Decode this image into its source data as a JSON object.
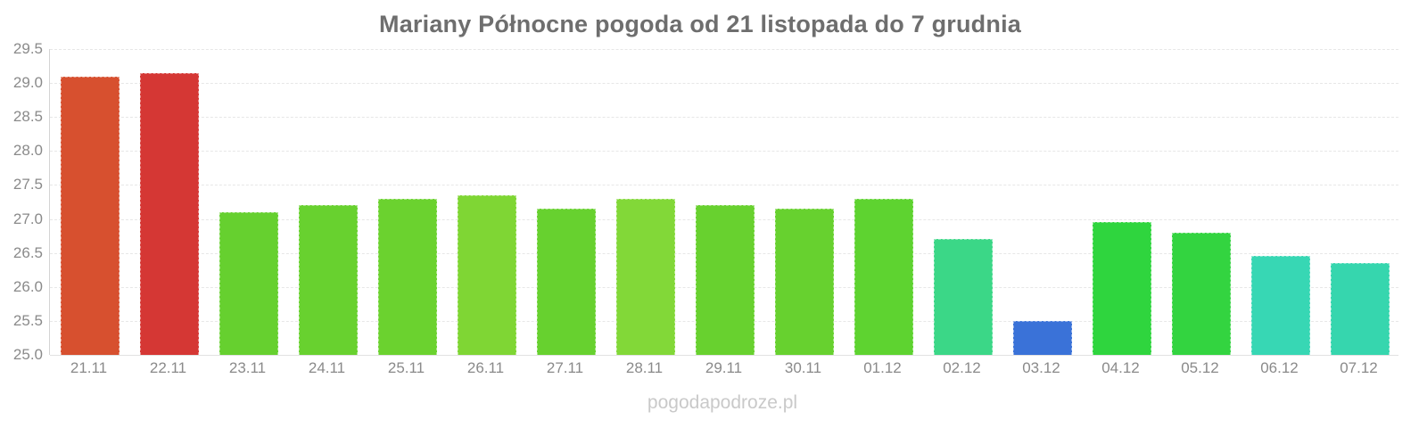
{
  "title": "Mariany Północne pogoda od 21 listopada do 7 grudnia",
  "footer": "pogodapodroze.pl",
  "chart_data": {
    "type": "bar",
    "title": "Mariany Północne pogoda od 21 listopada do 7 grudnia",
    "xlabel": "",
    "ylabel": "",
    "legend_position": "none",
    "grid": "horizontal-dashed",
    "ylim": [
      25.0,
      29.5
    ],
    "yticks": [
      "29.5",
      "29.0",
      "28.5",
      "28.0",
      "27.5",
      "27.0",
      "26.5",
      "26.0",
      "25.5",
      "25.0"
    ],
    "categories": [
      "21.11",
      "22.11",
      "23.11",
      "24.11",
      "25.11",
      "26.11",
      "27.11",
      "28.11",
      "29.11",
      "30.11",
      "01.12",
      "02.12",
      "03.12",
      "04.12",
      "05.12",
      "06.12",
      "07.12"
    ],
    "values": [
      29.1,
      29.15,
      27.1,
      27.2,
      27.3,
      27.35,
      27.15,
      27.3,
      27.2,
      27.15,
      27.3,
      26.7,
      25.5,
      26.95,
      26.8,
      26.45,
      26.35
    ],
    "colors": [
      "#d7502f",
      "#d53734",
      "#66d02f",
      "#68d12f",
      "#6bd22f",
      "#7fd634",
      "#67d12f",
      "#82d838",
      "#68d12f",
      "#67d12f",
      "#5ed330",
      "#3bd787",
      "#3a72d8",
      "#2fd53e",
      "#33d440",
      "#37d7b4",
      "#36d6ae"
    ]
  }
}
